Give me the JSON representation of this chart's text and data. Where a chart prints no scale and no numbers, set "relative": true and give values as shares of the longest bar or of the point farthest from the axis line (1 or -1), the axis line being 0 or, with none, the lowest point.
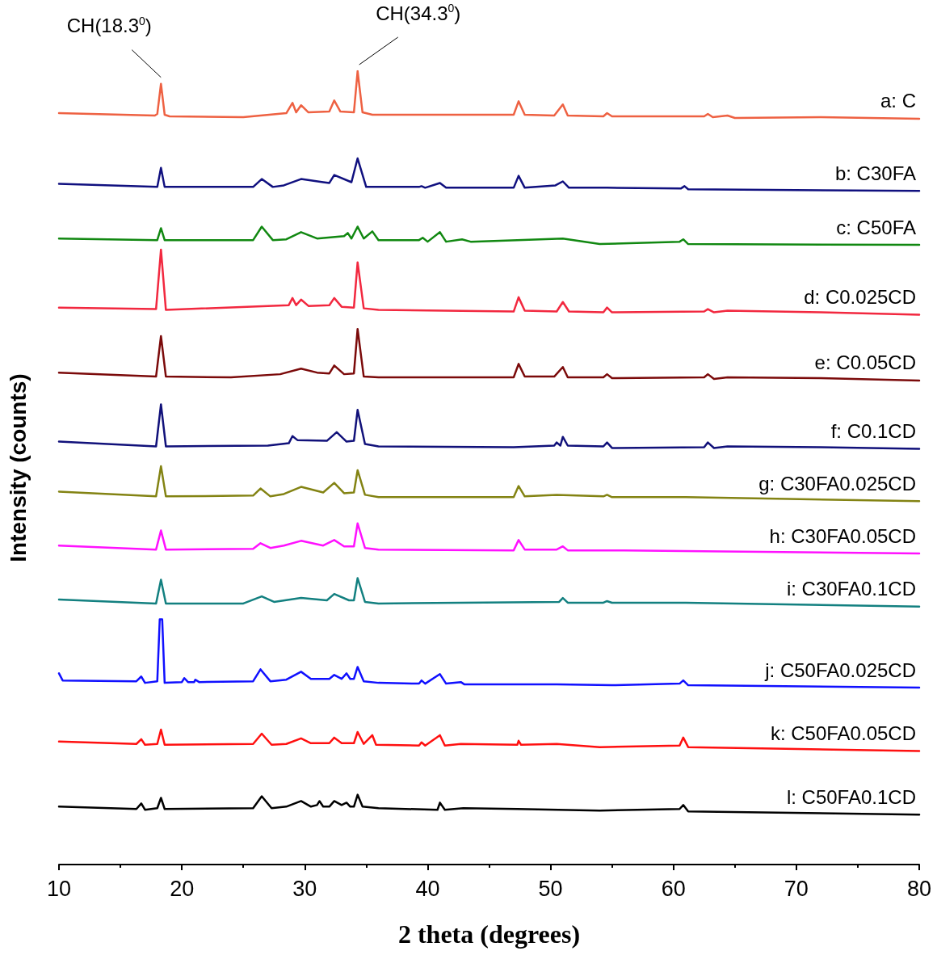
{
  "chart_data": {
    "type": "line",
    "relative": true,
    "xlabel": "2 theta (degrees)",
    "ylabel": "Intensity (counts)",
    "xlim": [
      10,
      80
    ],
    "xticks": [
      10,
      20,
      30,
      40,
      50,
      60,
      70,
      80
    ],
    "legend": false,
    "grid": false,
    "marker": "none",
    "line_style": "solid",
    "annotations": [
      {
        "text": "CH(18.3$^{0}$)",
        "x": 18.3,
        "y": 0.984
      },
      {
        "text": "CH(34.3$^{0}$)",
        "x": 34.3,
        "y": 1.0
      }
    ],
    "series": [
      {
        "name": "a: C",
        "color": "#ee6142",
        "x": [
          10,
          17.8,
          18.0,
          18.3,
          18.6,
          19,
          25,
          28.5,
          29.0,
          29.3,
          29.7,
          30.3,
          32.0,
          32.4,
          32.9,
          34.0,
          34.3,
          34.7,
          35.5,
          47.0,
          47.4,
          47.9,
          50.3,
          51.0,
          51.4,
          54.3,
          54.6,
          55,
          62.5,
          62.8,
          63.2,
          64.4,
          65,
          72,
          80
        ],
        "values": [
          0.947,
          0.944,
          0.946,
          0.984,
          0.945,
          0.943,
          0.942,
          0.947,
          0.96,
          0.948,
          0.957,
          0.948,
          0.949,
          0.963,
          0.949,
          0.948,
          1.0,
          0.948,
          0.945,
          0.945,
          0.962,
          0.945,
          0.944,
          0.958,
          0.944,
          0.943,
          0.947,
          0.943,
          0.943,
          0.946,
          0.942,
          0.944,
          0.941,
          0.942,
          0.94
        ]
      },
      {
        "name": "b: C30FA",
        "color": "#10107f",
        "x": [
          10,
          18.0,
          18.3,
          18.6,
          25.8,
          26.5,
          27.4,
          28.3,
          29.7,
          31.5,
          32.0,
          32.4,
          33.8,
          34.3,
          35,
          39.3,
          39.5,
          39.8,
          41.0,
          41.5,
          47.0,
          47.4,
          47.9,
          50.4,
          51.0,
          51.5,
          54.6,
          60.6,
          60.9,
          61.2,
          80
        ],
        "values": [
          0.858,
          0.854,
          0.878,
          0.854,
          0.854,
          0.864,
          0.854,
          0.856,
          0.864,
          0.86,
          0.859,
          0.869,
          0.86,
          0.89,
          0.854,
          0.854,
          0.855,
          0.853,
          0.859,
          0.853,
          0.853,
          0.868,
          0.853,
          0.856,
          0.861,
          0.853,
          0.853,
          0.852,
          0.855,
          0.851,
          0.849
        ]
      },
      {
        "name": "c: C50FA",
        "color": "#118811",
        "x": [
          10,
          18.0,
          18.3,
          18.6,
          25.8,
          26.5,
          27.4,
          28.5,
          29.7,
          31,
          33.2,
          33.5,
          33.8,
          34.3,
          34.8,
          35.5,
          36,
          39.3,
          39.6,
          40,
          41.0,
          41.5,
          42.8,
          43.5,
          47.3,
          51,
          54,
          60.5,
          60.8,
          61.2,
          80
        ],
        "values": [
          0.789,
          0.787,
          0.802,
          0.787,
          0.787,
          0.804,
          0.787,
          0.788,
          0.797,
          0.789,
          0.792,
          0.796,
          0.789,
          0.804,
          0.789,
          0.798,
          0.787,
          0.787,
          0.79,
          0.785,
          0.797,
          0.785,
          0.788,
          0.785,
          0.787,
          0.789,
          0.782,
          0.785,
          0.788,
          0.782,
          0.781
        ]
      },
      {
        "name": "d: C0.025CD",
        "color": "#f2283f",
        "x": [
          10,
          17.9,
          18.3,
          18.7,
          28.7,
          29.0,
          29.3,
          29.7,
          30.3,
          32.0,
          32.4,
          33,
          34.0,
          34.3,
          34.8,
          36,
          47.0,
          47.4,
          47.9,
          50.5,
          51.0,
          51.5,
          54.3,
          54.6,
          55,
          62.5,
          62.8,
          63.3,
          64.4,
          72,
          80
        ],
        "values": [
          0.702,
          0.7,
          0.775,
          0.699,
          0.705,
          0.714,
          0.705,
          0.712,
          0.704,
          0.705,
          0.714,
          0.703,
          0.702,
          0.759,
          0.701,
          0.699,
          0.697,
          0.715,
          0.698,
          0.697,
          0.709,
          0.697,
          0.696,
          0.702,
          0.696,
          0.697,
          0.7,
          0.696,
          0.698,
          0.696,
          0.693
        ]
      },
      {
        "name": "e: C0.05CD",
        "color": "#7b0a0a",
        "x": [
          10,
          17.9,
          18.3,
          18.7,
          24,
          28,
          29.7,
          31,
          32.0,
          32.4,
          33.2,
          34.0,
          34.3,
          34.8,
          36,
          47.0,
          47.4,
          47.9,
          50.3,
          51.0,
          51.4,
          54.3,
          54.6,
          55,
          62.5,
          62.8,
          63.3,
          64.4,
          72,
          80
        ],
        "values": [
          0.62,
          0.615,
          0.666,
          0.615,
          0.614,
          0.618,
          0.625,
          0.62,
          0.619,
          0.629,
          0.618,
          0.619,
          0.675,
          0.615,
          0.614,
          0.614,
          0.631,
          0.615,
          0.615,
          0.627,
          0.614,
          0.614,
          0.618,
          0.613,
          0.614,
          0.618,
          0.612,
          0.614,
          0.613,
          0.61
        ]
      },
      {
        "name": "f: C0.1CD",
        "color": "#11117a",
        "x": [
          10,
          17.9,
          18.3,
          18.7,
          27,
          28.7,
          29.0,
          29.4,
          31.8,
          32.6,
          33.4,
          34.0,
          34.3,
          34.9,
          36,
          47,
          50.3,
          50.5,
          50.8,
          51.0,
          51.4,
          54.3,
          54.6,
          55,
          62.5,
          62.8,
          63.3,
          64.4,
          72,
          80
        ],
        "values": [
          0.533,
          0.527,
          0.58,
          0.527,
          0.528,
          0.531,
          0.54,
          0.535,
          0.534,
          0.545,
          0.533,
          0.534,
          0.573,
          0.53,
          0.527,
          0.526,
          0.528,
          0.532,
          0.528,
          0.539,
          0.528,
          0.527,
          0.532,
          0.525,
          0.526,
          0.532,
          0.525,
          0.527,
          0.526,
          0.524
        ]
      },
      {
        "name": "g: C30FA0.025CD",
        "color": "#838313",
        "x": [
          10,
          17.9,
          18.3,
          18.7,
          25.8,
          26.4,
          27.2,
          28.3,
          29.7,
          31.5,
          32.4,
          33.2,
          34.0,
          34.3,
          34.9,
          36,
          47.0,
          47.4,
          47.9,
          50.5,
          54.3,
          54.6,
          55,
          61,
          80
        ],
        "values": [
          0.47,
          0.464,
          0.502,
          0.464,
          0.465,
          0.474,
          0.464,
          0.467,
          0.476,
          0.469,
          0.481,
          0.468,
          0.469,
          0.497,
          0.466,
          0.463,
          0.463,
          0.477,
          0.464,
          0.466,
          0.464,
          0.466,
          0.463,
          0.463,
          0.458
        ]
      },
      {
        "name": "h: C30FA0.05CD",
        "color": "#ff11ff",
        "x": [
          10,
          17.9,
          18.3,
          18.7,
          25.8,
          26.4,
          27.2,
          28.3,
          29.7,
          31.5,
          32.4,
          33.2,
          34.0,
          34.3,
          34.9,
          36,
          47.0,
          47.4,
          47.9,
          50.5,
          51.0,
          51.4,
          56,
          80
        ],
        "values": [
          0.402,
          0.397,
          0.421,
          0.397,
          0.398,
          0.405,
          0.399,
          0.402,
          0.408,
          0.402,
          0.409,
          0.401,
          0.401,
          0.43,
          0.399,
          0.397,
          0.396,
          0.409,
          0.397,
          0.397,
          0.401,
          0.396,
          0.396,
          0.392
        ]
      },
      {
        "name": "i: C30FA0.1CD",
        "color": "#138080",
        "x": [
          10,
          17.9,
          18.3,
          18.7,
          25,
          26.5,
          27.5,
          29.7,
          31.8,
          32.4,
          33.6,
          34.0,
          34.3,
          34.9,
          36,
          50.7,
          51.0,
          51.4,
          54.3,
          54.6,
          55,
          61,
          80
        ],
        "values": [
          0.334,
          0.329,
          0.359,
          0.329,
          0.329,
          0.338,
          0.331,
          0.336,
          0.333,
          0.341,
          0.333,
          0.333,
          0.361,
          0.331,
          0.329,
          0.331,
          0.336,
          0.33,
          0.33,
          0.332,
          0.33,
          0.33,
          0.325
        ]
      },
      {
        "name": "j: C50FA0.025CD",
        "color": "#1010ff",
        "x": [
          10,
          10.3,
          16.3,
          16.7,
          17,
          18.0,
          18.2,
          18.4,
          18.6,
          20,
          20.2,
          20.5,
          21,
          21.1,
          21.4,
          25.8,
          26.4,
          27.2,
          28.5,
          29.7,
          30.5,
          32.0,
          32.4,
          33.0,
          33.4,
          33.7,
          34.0,
          34.3,
          34.8,
          36,
          39.3,
          39.5,
          39.8,
          41.0,
          41.5,
          42.7,
          43,
          50.5,
          55,
          60.5,
          60.8,
          61.2,
          80
        ],
        "values": [
          0.241,
          0.232,
          0.231,
          0.237,
          0.229,
          0.231,
          0.309,
          0.309,
          0.229,
          0.23,
          0.235,
          0.23,
          0.23,
          0.233,
          0.23,
          0.231,
          0.246,
          0.231,
          0.233,
          0.243,
          0.234,
          0.234,
          0.239,
          0.234,
          0.241,
          0.234,
          0.234,
          0.249,
          0.231,
          0.229,
          0.228,
          0.232,
          0.228,
          0.24,
          0.228,
          0.23,
          0.227,
          0.227,
          0.226,
          0.228,
          0.232,
          0.226,
          0.223
        ]
      },
      {
        "name": "k: C50FA0.05CD",
        "color": "#ff1010",
        "x": [
          10,
          16.3,
          16.7,
          17,
          18.0,
          18.3,
          18.6,
          25.8,
          26.5,
          27.3,
          28.5,
          29.7,
          30.5,
          32.0,
          32.4,
          33,
          34.0,
          34.3,
          34.8,
          35.5,
          35.8,
          39.3,
          39.5,
          39.8,
          41.0,
          41.4,
          42.7,
          47.3,
          47.4,
          47.6,
          50.5,
          54,
          60.5,
          60.8,
          61.2,
          80
        ],
        "values": [
          0.155,
          0.152,
          0.158,
          0.151,
          0.152,
          0.17,
          0.151,
          0.152,
          0.165,
          0.151,
          0.152,
          0.159,
          0.153,
          0.153,
          0.16,
          0.153,
          0.153,
          0.167,
          0.152,
          0.163,
          0.151,
          0.15,
          0.154,
          0.15,
          0.163,
          0.15,
          0.152,
          0.151,
          0.156,
          0.151,
          0.152,
          0.148,
          0.15,
          0.16,
          0.148,
          0.143
        ]
      },
      {
        "name": "l: C50FA0.1CD",
        "color": "#000000",
        "x": [
          10,
          16.3,
          16.7,
          17,
          18.0,
          18.3,
          18.6,
          25.8,
          26.5,
          27.3,
          28.5,
          29.7,
          30.5,
          31.0,
          31.2,
          31.5,
          32.0,
          32.4,
          33.0,
          33.4,
          33.7,
          34.0,
          34.3,
          34.7,
          36,
          40.8,
          41.0,
          41.4,
          42.9,
          47.3,
          54,
          60.5,
          60.8,
          61.2,
          80
        ],
        "values": [
          0.073,
          0.07,
          0.077,
          0.069,
          0.071,
          0.084,
          0.07,
          0.071,
          0.086,
          0.071,
          0.073,
          0.08,
          0.073,
          0.075,
          0.08,
          0.073,
          0.073,
          0.08,
          0.075,
          0.078,
          0.073,
          0.073,
          0.088,
          0.073,
          0.071,
          0.069,
          0.078,
          0.069,
          0.071,
          0.07,
          0.068,
          0.07,
          0.075,
          0.067,
          0.063
        ]
      }
    ]
  }
}
